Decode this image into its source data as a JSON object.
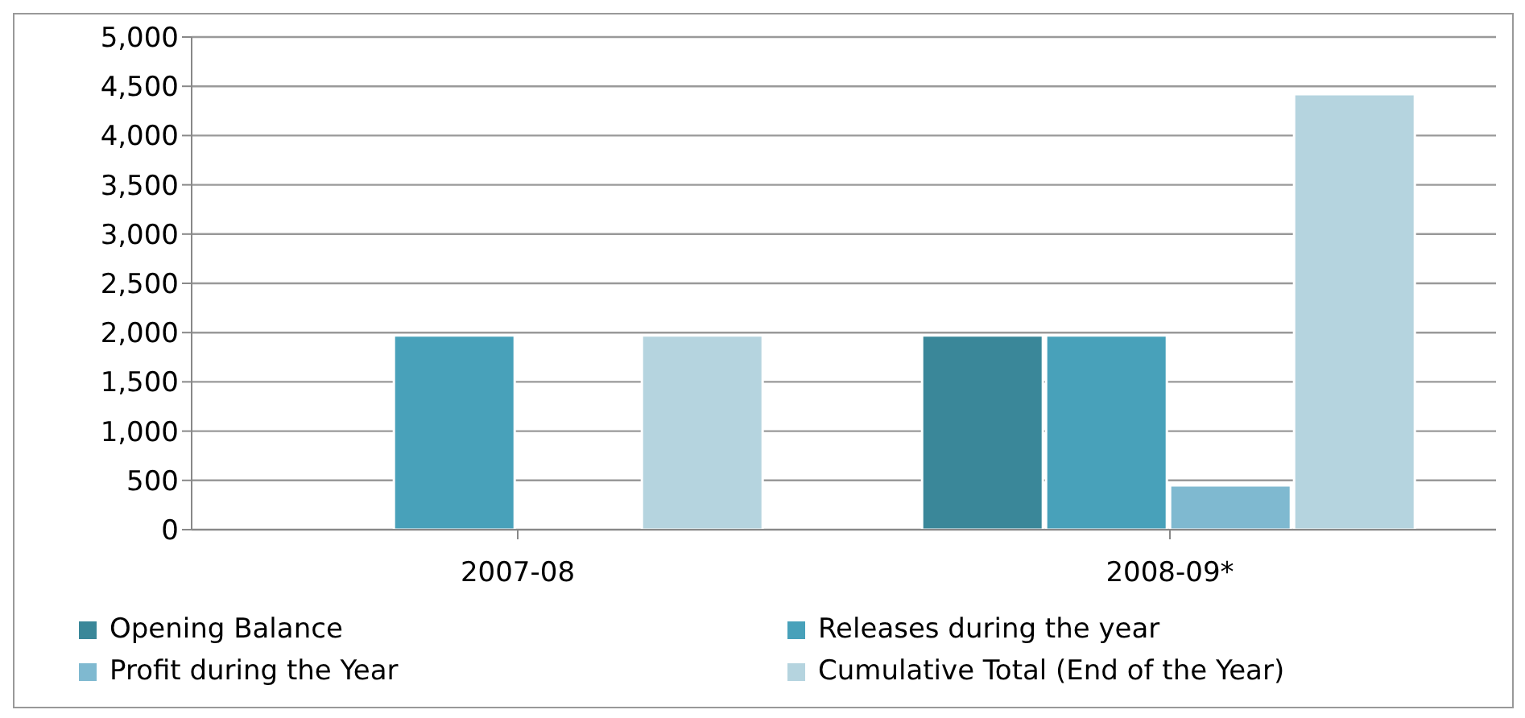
{
  "chart_data": {
    "type": "bar",
    "categories": [
      "2007-08",
      "2008-09*"
    ],
    "series": [
      {
        "name": "Opening Balance",
        "color": "#3a8799",
        "values": [
          null,
          1970
        ]
      },
      {
        "name": "Releases during the year",
        "color": "#48a1ba",
        "values": [
          1970,
          1970
        ]
      },
      {
        "name": "Profit during the Year",
        "color": "#7fb9d0",
        "values": [
          null,
          450
        ]
      },
      {
        "name": "Cumulative Total  (End of the Year)",
        "color": "#b5d4df",
        "values": [
          1970,
          4420
        ]
      }
    ],
    "ylim": [
      0,
      5000
    ],
    "yticks": [
      0,
      500,
      {
        "value": 1000,
        "label": "1,000"
      },
      {
        "value": 1500,
        "label": "1,500"
      },
      {
        "value": 2000,
        "label": "2,000"
      },
      {
        "value": 2500,
        "label": "2,500"
      },
      {
        "value": 3000,
        "label": "3,000"
      },
      {
        "value": 3500,
        "label": "3,500"
      },
      {
        "value": 4000,
        "label": "4,000"
      },
      {
        "value": 4500,
        "label": "4,500"
      },
      {
        "value": 5000,
        "label": "5,000"
      }
    ],
    "grid": "y",
    "legend": "bottom"
  }
}
